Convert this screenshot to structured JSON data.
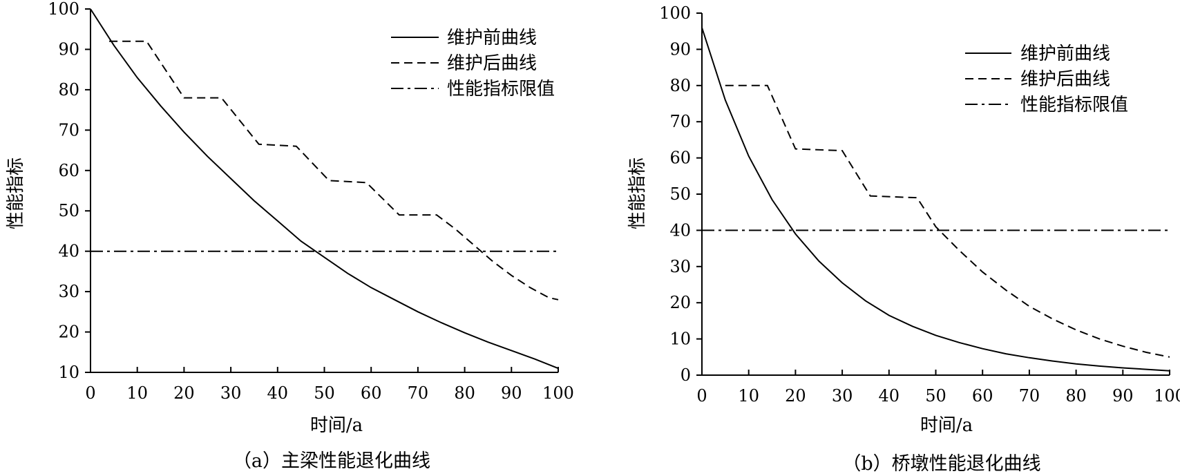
{
  "chart_data": [
    {
      "type": "line",
      "xlabel": "时间/a",
      "ylabel": "性能指标",
      "caption": "（a）主梁性能退化曲线",
      "xlim": [
        0,
        100
      ],
      "ylim": [
        10,
        100
      ],
      "xticks": [
        0,
        10,
        20,
        30,
        40,
        50,
        60,
        70,
        80,
        90,
        100
      ],
      "yticks": [
        10,
        20,
        30,
        40,
        50,
        60,
        70,
        80,
        90,
        100
      ],
      "grid": false,
      "legend_position": "top-right",
      "series": [
        {
          "name": "维护前曲线",
          "style": "solid",
          "x": [
            0,
            5,
            10,
            15,
            20,
            25,
            30,
            35,
            40,
            45,
            50,
            55,
            60,
            65,
            70,
            75,
            80,
            85,
            90,
            95,
            100
          ],
          "y": [
            100,
            91,
            83,
            76,
            69.5,
            63.5,
            58,
            52.5,
            47.5,
            42.5,
            38.5,
            34.5,
            31,
            28,
            25,
            22.3,
            19.8,
            17.5,
            15.4,
            13.3,
            11
          ]
        },
        {
          "name": "维护后曲线",
          "style": "dashed",
          "x": [
            4,
            12,
            20,
            28,
            36,
            44,
            51,
            59,
            66,
            74,
            78,
            82,
            86,
            90,
            94,
            98,
            100
          ],
          "y": [
            92,
            92,
            78,
            78,
            66.5,
            66,
            57.5,
            57,
            49,
            49,
            45.5,
            41.5,
            37.5,
            34,
            31,
            28.5,
            28
          ]
        },
        {
          "name": "性能指标限值",
          "style": "dashdot",
          "x": [
            0,
            100
          ],
          "y": [
            40,
            40
          ]
        }
      ]
    },
    {
      "type": "line",
      "xlabel": "时间/a",
      "ylabel": "性能指标",
      "caption": "（b）桥墩性能退化曲线",
      "xlim": [
        0,
        100
      ],
      "ylim": [
        0,
        100
      ],
      "xticks": [
        0,
        10,
        20,
        30,
        40,
        50,
        60,
        70,
        80,
        90,
        100
      ],
      "yticks": [
        0,
        10,
        20,
        30,
        40,
        50,
        60,
        70,
        80,
        90,
        100
      ],
      "grid": false,
      "legend_position": "top-right",
      "series": [
        {
          "name": "维护前曲线",
          "style": "solid",
          "x": [
            0,
            5,
            10,
            15,
            20,
            25,
            30,
            35,
            40,
            45,
            50,
            55,
            60,
            65,
            70,
            75,
            80,
            85,
            90,
            95,
            100
          ],
          "y": [
            96,
            76,
            60.5,
            48.5,
            39,
            31.5,
            25.5,
            20.5,
            16.5,
            13.5,
            11,
            9,
            7.3,
            5.9,
            4.8,
            3.9,
            3.1,
            2.5,
            2,
            1.6,
            1.2
          ]
        },
        {
          "name": "维护后曲线",
          "style": "dashed",
          "x": [
            5,
            14,
            20,
            30,
            36,
            46,
            50,
            55,
            60,
            65,
            70,
            75,
            80,
            85,
            90,
            95,
            100
          ],
          "y": [
            80,
            80,
            62.5,
            62,
            49.5,
            49,
            41,
            34.5,
            28.5,
            23.5,
            19,
            15.5,
            12.5,
            10,
            8,
            6.3,
            5
          ]
        },
        {
          "name": "性能指标限值",
          "style": "dashdot",
          "x": [
            0,
            100
          ],
          "y": [
            40,
            40
          ]
        }
      ]
    }
  ]
}
